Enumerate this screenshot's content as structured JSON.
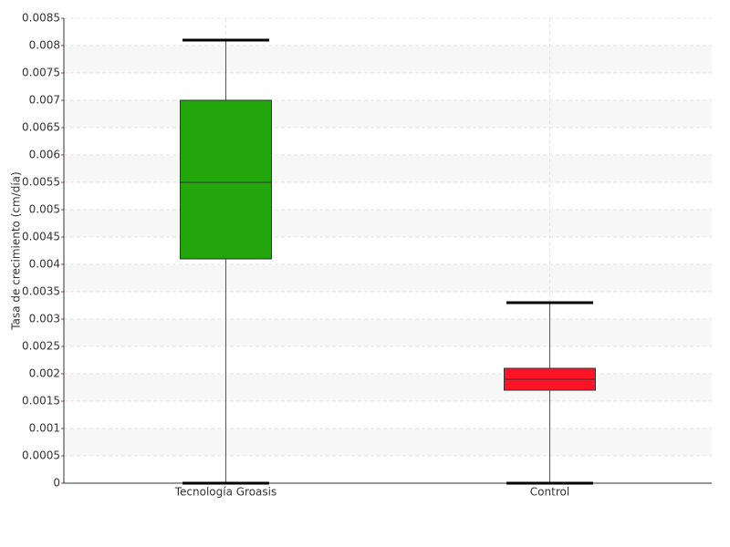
{
  "chart_data": {
    "type": "box",
    "y_label": "Tasa de crecimiento (cm/día)",
    "categories": [
      "Tecnología Groasis",
      "Control"
    ],
    "boxes": [
      {
        "min": 0,
        "q1": 0.0041,
        "median": 0.0055,
        "q3": 0.007,
        "max": 0.0081,
        "color": "#22a60b"
      },
      {
        "min": 0,
        "q1": 0.0017,
        "median": 0.0019,
        "q3": 0.0021,
        "max": 0.0033,
        "color": "#ff1427"
      }
    ],
    "ylim": [
      0,
      0.0085
    ],
    "yticks": [
      0,
      0.0005,
      0.001,
      0.0015,
      0.002,
      0.0025,
      0.003,
      0.0035,
      0.004,
      0.0045,
      0.005,
      0.0055,
      0.006,
      0.0065,
      0.007,
      0.0075,
      0.008,
      0.0085
    ],
    "grid": true
  }
}
